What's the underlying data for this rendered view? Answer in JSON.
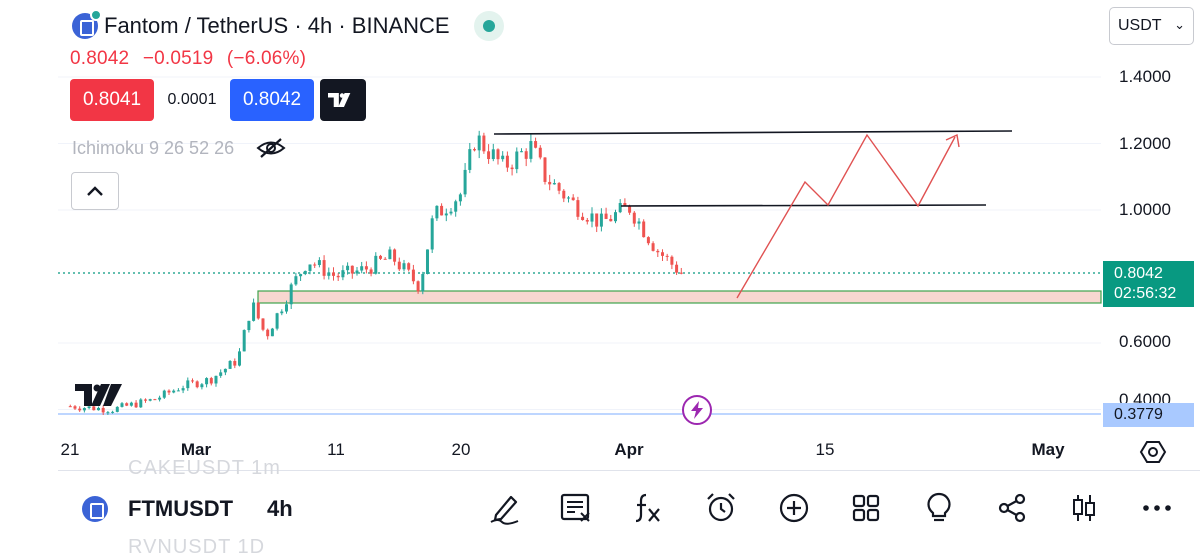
{
  "header": {
    "title": "Fantom / TetherUS · 4h · BINANCE",
    "price_change": {
      "last": "0.8042",
      "change": "−0.0519",
      "percent": "(−6.06%)"
    },
    "sell_price": "0.8041",
    "spread": "0.0001",
    "buy_price": "0.8042",
    "indicator": "Ichimoku 9 26 52 26",
    "currency": "USDT"
  },
  "chart": {
    "y_axis_labels": [
      "1.4000",
      "1.2000",
      "1.0000",
      "0.6000"
    ],
    "x_axis_labels": [
      "21",
      "Mar",
      "11",
      "20",
      "Apr",
      "15",
      "May"
    ],
    "x_axis_bold": [
      "Mar",
      "Apr",
      "May"
    ],
    "last_price_tag": "0.8042",
    "countdown": "02:56:32",
    "marker_price_tag": "0.3779",
    "partial_axis_label": "0.4000",
    "colors": {
      "up": "#26a69a",
      "down": "#ef5350",
      "level": "#131722",
      "projection": "#e05252",
      "zone_fill": "#f8d7d0",
      "zone_border": "#3fa34d",
      "marker_line": "#a9c9ff"
    }
  },
  "chart_data": {
    "type": "candlestick",
    "title": "Fantom / TetherUS · 4h · BINANCE",
    "xlabel": "",
    "ylabel": "",
    "ylim": [
      0.37,
      1.45
    ],
    "x_ticks": [
      "21",
      "Mar",
      "11",
      "20",
      "Apr",
      "15",
      "May"
    ],
    "y_ticks": [
      0.4,
      0.6,
      1.0,
      1.2,
      1.4
    ],
    "price_path": [
      {
        "x": "Feb 20",
        "y": 0.41
      },
      {
        "x": "Feb 23",
        "y": 0.4
      },
      {
        "x": "Feb 26",
        "y": 0.43
      },
      {
        "x": "Feb 28",
        "y": 0.47
      },
      {
        "x": "Mar 2",
        "y": 0.49
      },
      {
        "x": "Mar 4",
        "y": 0.55
      },
      {
        "x": "Mar 5",
        "y": 0.72
      },
      {
        "x": "Mar 6",
        "y": 0.62
      },
      {
        "x": "Mar 8",
        "y": 0.78
      },
      {
        "x": "Mar 9",
        "y": 0.85
      },
      {
        "x": "Mar 11",
        "y": 0.8
      },
      {
        "x": "Mar 13",
        "y": 0.82
      },
      {
        "x": "Mar 15",
        "y": 0.86
      },
      {
        "x": "Mar 17",
        "y": 0.77
      },
      {
        "x": "Mar 18",
        "y": 0.98
      },
      {
        "x": "Mar 20",
        "y": 1.05
      },
      {
        "x": "Mar 21",
        "y": 1.22
      },
      {
        "x": "Mar 23",
        "y": 1.13
      },
      {
        "x": "Mar 25",
        "y": 1.19
      },
      {
        "x": "Mar 26",
        "y": 1.1
      },
      {
        "x": "Mar 28",
        "y": 1.02
      },
      {
        "x": "Mar 30",
        "y": 0.96
      },
      {
        "x": "Apr 1",
        "y": 1.01
      },
      {
        "x": "Apr 3",
        "y": 0.88
      },
      {
        "x": "Apr 5",
        "y": 0.8
      }
    ],
    "resistance_levels": [
      1.23,
      1.01
    ],
    "support_zone": [
      0.73,
      0.76
    ],
    "projection": [
      {
        "x": "Apr 8",
        "y": 0.74
      },
      {
        "x": "Apr 13",
        "y": 1.08
      },
      {
        "x": "Apr 15",
        "y": 1.01
      },
      {
        "x": "Apr 18",
        "y": 1.23
      },
      {
        "x": "Apr 22",
        "y": 1.01
      },
      {
        "x": "Apr 26",
        "y": 1.22
      }
    ],
    "last_price": 0.8042,
    "marker_price": 0.3779,
    "grid": true
  },
  "bottom": {
    "symbol": "FTMUSDT",
    "timeframe": "4h",
    "ghost_above": "CAKEUSDT 1m",
    "ghost_below": "RVNUSDT 1D",
    "tools": [
      "pencil-icon",
      "news-icon",
      "fx-icon",
      "alarm-icon",
      "plus-circle-icon",
      "grid-icon",
      "lightbulb-icon",
      "share-icon",
      "candles-icon",
      "more-icon"
    ]
  }
}
